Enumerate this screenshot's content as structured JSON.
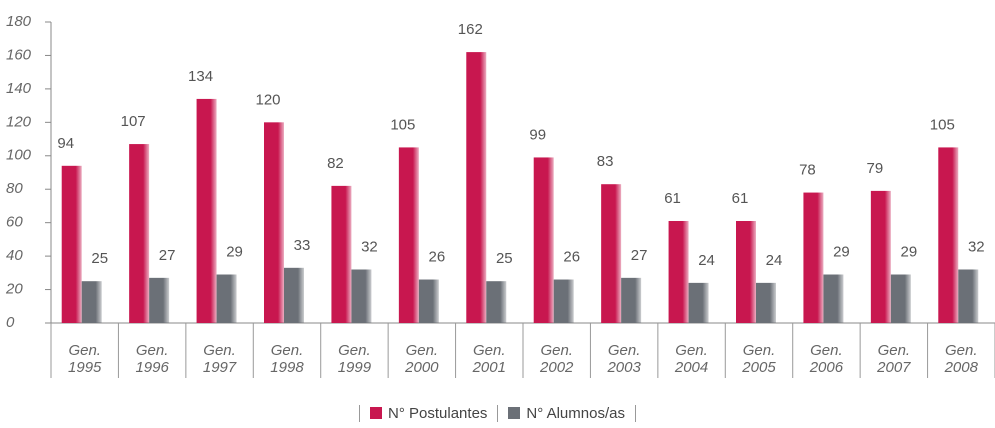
{
  "chart_data": {
    "type": "bar",
    "categories": [
      "Gen. 1995",
      "Gen. 1996",
      "Gen. 1997",
      "Gen. 1998",
      "Gen. 1999",
      "Gen. 2000",
      "Gen. 2001",
      "Gen. 2002",
      "Gen. 2003",
      "Gen. 2004",
      "Gen. 2005",
      "Gen. 2006",
      "Gen. 2007",
      "Gen. 2008"
    ],
    "series": [
      {
        "name": "N° Postulantes",
        "color": "#c8174f",
        "values": [
          94,
          107,
          134,
          120,
          82,
          105,
          162,
          99,
          83,
          61,
          61,
          78,
          79,
          105
        ]
      },
      {
        "name": "N° Alumnos/as",
        "color": "#6b7077",
        "values": [
          25,
          27,
          29,
          33,
          32,
          26,
          25,
          26,
          27,
          24,
          24,
          29,
          29,
          32
        ]
      }
    ],
    "ylim": [
      0,
      180
    ],
    "yticks": [
      0,
      20,
      40,
      60,
      80,
      100,
      120,
      140,
      160,
      180
    ],
    "legend": "bottom"
  }
}
